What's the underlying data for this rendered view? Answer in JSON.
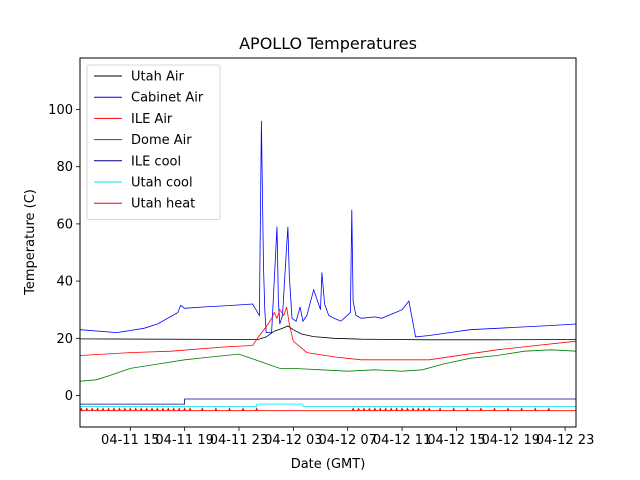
{
  "chart_data": {
    "type": "line",
    "title": "APOLLO Temperatures",
    "xlabel": "Date (GMT)",
    "ylabel": "Temperature (C)",
    "x_unit": "hours since 04-11 12:00 GMT",
    "xlim": [
      -0.7,
      35.8
    ],
    "ylim": [
      -11,
      118
    ],
    "xticks": [
      {
        "value": 3,
        "label": "04-11 15"
      },
      {
        "value": 7,
        "label": "04-11 19"
      },
      {
        "value": 11,
        "label": "04-11 23"
      },
      {
        "value": 15,
        "label": "04-12 03"
      },
      {
        "value": 19,
        "label": "04-12 07"
      },
      {
        "value": 23,
        "label": "04-12 11"
      },
      {
        "value": 27,
        "label": "04-12 15"
      },
      {
        "value": 31,
        "label": "04-12 19"
      },
      {
        "value": 35,
        "label": "04-12 23"
      }
    ],
    "yticks": [
      {
        "value": 0,
        "label": "0"
      },
      {
        "value": 20,
        "label": "20"
      },
      {
        "value": 40,
        "label": "40"
      },
      {
        "value": 60,
        "label": "60"
      },
      {
        "value": 80,
        "label": "80"
      },
      {
        "value": 100,
        "label": "100"
      }
    ],
    "legend_position": "upper-left",
    "series": [
      {
        "name": "Utah Air",
        "color": "#000000",
        "style": "line",
        "x": [
          -0.7,
          12.4,
          13.0,
          13.6,
          14.2,
          14.6,
          15.0,
          15.6,
          16.5,
          18.0,
          20.0,
          25.0,
          30.0,
          35.8
        ],
        "y": [
          19.8,
          19.6,
          20.5,
          22.5,
          23.5,
          24.3,
          23.0,
          21.5,
          20.6,
          20.0,
          19.7,
          19.5,
          19.5,
          19.6
        ]
      },
      {
        "name": "Cabinet Air",
        "color": "#0000ff",
        "style": "line",
        "x": [
          -0.7,
          2.0,
          4.0,
          5.0,
          6.5,
          6.7,
          7.0,
          8.5,
          10.5,
          12.0,
          12.5,
          12.65,
          12.8,
          12.9,
          13.0,
          13.4,
          13.8,
          13.9,
          14.0,
          14.2,
          14.5,
          14.6,
          14.7,
          14.9,
          15.2,
          15.5,
          15.7,
          16.0,
          16.5,
          17.0,
          17.1,
          17.3,
          17.6,
          18.0,
          18.5,
          19.2,
          19.3,
          19.4,
          19.6,
          20.0,
          21.0,
          21.5,
          22.0,
          22.5,
          23.0,
          23.5,
          24.0,
          25.0,
          26.5,
          28.0,
          30.0,
          32.0,
          34.0,
          35.8
        ],
        "y": [
          23.0,
          22.0,
          23.5,
          25.0,
          29.0,
          31.5,
          30.5,
          31.0,
          31.5,
          32.0,
          28.0,
          96.0,
          45.0,
          30.0,
          22.0,
          22.0,
          59.0,
          33.0,
          25.0,
          28.0,
          52.0,
          59.0,
          42.0,
          27.0,
          26.0,
          31.0,
          26.0,
          28.0,
          37.0,
          30.0,
          43.0,
          32.0,
          28.0,
          27.0,
          26.0,
          29.0,
          65.0,
          33.0,
          28.0,
          27.0,
          27.5,
          27.0,
          28.0,
          29.0,
          30.0,
          33.0,
          20.5,
          21.0,
          22.0,
          23.0,
          23.5,
          24.0,
          24.5,
          25.0
        ]
      },
      {
        "name": "ILE Air",
        "color": "#ff0000",
        "style": "line",
        "x": [
          -0.7,
          3.0,
          6.0,
          10.0,
          12.0,
          12.5,
          13.0,
          13.4,
          13.6,
          13.8,
          14.0,
          14.3,
          14.5,
          14.7,
          15.0,
          16.0,
          18.0,
          20.0,
          25.0,
          30.0,
          35.8
        ],
        "y": [
          14.0,
          15.0,
          15.5,
          17.0,
          17.5,
          21.0,
          24.0,
          27.0,
          29.0,
          27.0,
          30.0,
          28.0,
          31.0,
          25.0,
          19.0,
          15.0,
          13.5,
          12.5,
          12.5,
          16.0,
          19.0
        ]
      },
      {
        "name": "Dome Air",
        "color": "#008000",
        "style": "line",
        "x": [
          -0.7,
          0.5,
          1.5,
          3.0,
          5.0,
          7.0,
          9.0,
          11.0,
          12.5,
          14.0,
          15.0,
          17.0,
          19.0,
          21.0,
          23.0,
          24.5,
          26.0,
          28.0,
          30.0,
          32.0,
          34.0,
          35.8
        ],
        "y": [
          5.0,
          5.5,
          7.0,
          9.5,
          11.0,
          12.5,
          13.5,
          14.5,
          12.0,
          9.5,
          9.5,
          9.0,
          8.5,
          9.0,
          8.5,
          9.0,
          11.0,
          13.0,
          14.0,
          15.5,
          16.0,
          15.5
        ]
      },
      {
        "name": "ILE cool",
        "color": "#00008b",
        "style": "line",
        "x": [
          -0.7,
          7.0,
          7.0,
          35.8
        ],
        "y": [
          -3.0,
          -3.0,
          -1.2,
          -1.2
        ]
      },
      {
        "name": "Utah cool",
        "color": "#00e5ee",
        "style": "line",
        "x": [
          -0.7,
          12.3,
          12.3,
          15.7,
          15.7,
          35.8
        ],
        "y": [
          -3.8,
          -3.8,
          -3.0,
          -3.0,
          -3.8,
          -3.8
        ]
      },
      {
        "name": "Utah heat",
        "color": "#ff0000",
        "style": "line",
        "x": [
          -0.7,
          35.8
        ],
        "y": [
          -5.3,
          -5.3
        ],
        "markers_y": -4.6,
        "markers_x": [
          -0.6,
          -0.2,
          0.2,
          0.6,
          1.0,
          1.4,
          1.8,
          2.2,
          2.6,
          3.0,
          3.4,
          3.8,
          4.2,
          4.6,
          5.0,
          5.4,
          5.8,
          6.2,
          6.6,
          7.0,
          7.4,
          8.3,
          9.3,
          10.3,
          11.3,
          12.3,
          19.4,
          19.8,
          20.2,
          20.6,
          21.0,
          21.4,
          21.8,
          22.2,
          22.6,
          23.0,
          23.4,
          23.8,
          24.2,
          24.6,
          25.0,
          25.8,
          26.8,
          27.8,
          28.8,
          29.8,
          30.8,
          31.8,
          32.8,
          33.8
        ]
      }
    ]
  }
}
